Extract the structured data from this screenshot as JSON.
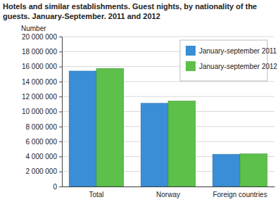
{
  "chart_data": {
    "type": "bar",
    "title": "Hotels and similar establishments. Guest nights, by nationality of the guests. January-September. 2011 and 2012",
    "y_label": "Number",
    "categories": [
      "Total",
      "Norway",
      "Foreign countries"
    ],
    "series": [
      {
        "name": "January-september 2011",
        "color": "#3a8ed6",
        "values": [
          15400000,
          11100000,
          4300000
        ]
      },
      {
        "name": "January-september 2012",
        "color": "#5cc04a",
        "values": [
          15750000,
          11400000,
          4350000
        ]
      }
    ],
    "ylim": [
      0,
      20000000
    ],
    "yticks": [
      0,
      {
        "value": 2000000,
        "label": "2 000 000"
      },
      {
        "value": 4000000,
        "label": "4 000 000"
      },
      {
        "value": 6000000,
        "label": "6 000 000"
      },
      {
        "value": 8000000,
        "label": "8 000 000"
      },
      {
        "value": 10000000,
        "label": "10 000 000"
      },
      {
        "value": 12000000,
        "label": "12 000 000"
      },
      {
        "value": 14000000,
        "label": "14 000 000"
      },
      {
        "value": 16000000,
        "label": "16 000 000"
      },
      {
        "value": 18000000,
        "label": "18 000 000"
      },
      {
        "value": 20000000,
        "label": "20 000 000"
      }
    ],
    "grid": true,
    "legend": "upper right"
  }
}
